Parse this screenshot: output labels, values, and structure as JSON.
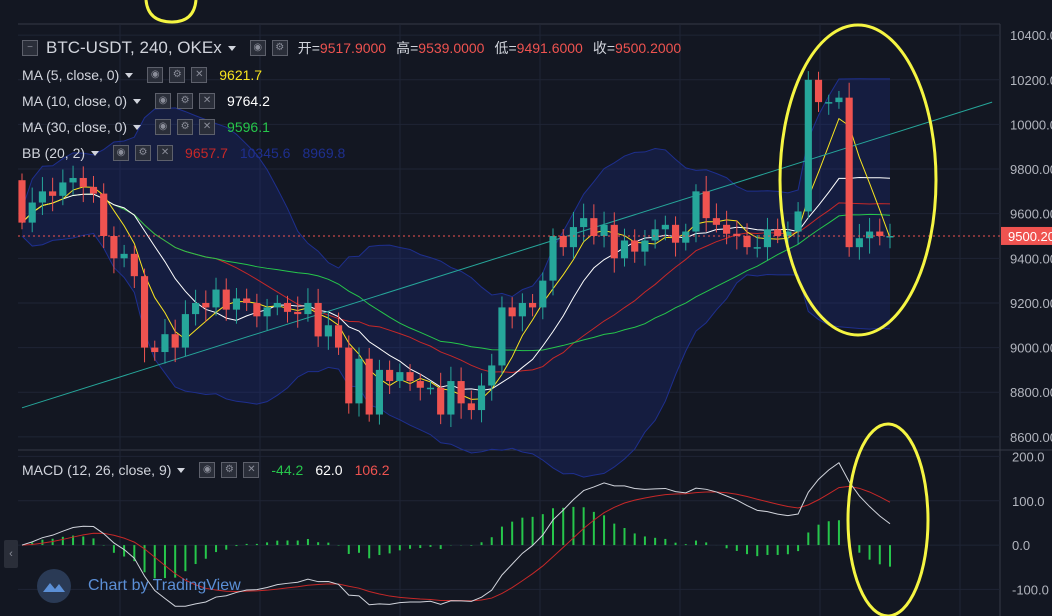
{
  "header": {
    "symbol_title": "BTC-USDT, 240, OKEx",
    "ohlc": [
      {
        "key": "开",
        "value": "9517.9000"
      },
      {
        "key": "高",
        "value": "9539.0000"
      },
      {
        "key": "低",
        "value": "9491.6000"
      },
      {
        "key": "收",
        "value": "9500.2000"
      }
    ]
  },
  "indicators": [
    {
      "label": "MA (5, close, 0)",
      "value": "9621.7",
      "color": "#f7e41f"
    },
    {
      "label": "MA (10, close, 0)",
      "value": "9764.2",
      "color": "#ffffff"
    },
    {
      "label": "MA (30, close, 0)",
      "value": "9596.1",
      "color": "#26c64b"
    },
    {
      "label": "BB (20, 2)",
      "values": [
        {
          "v": "9657.7",
          "color": "#c62828"
        },
        {
          "v": "10345.6",
          "color": "#1e2f8e"
        },
        {
          "v": "8969.8",
          "color": "#1e2f8e"
        }
      ]
    }
  ],
  "macd_legend": {
    "label": "MACD (12, 26, close, 9)",
    "values": [
      {
        "v": "-44.2",
        "color": "#26c64b"
      },
      {
        "v": "62.0",
        "color": "#ffffff"
      },
      {
        "v": "106.2",
        "color": "#ef5350"
      }
    ]
  },
  "price_axis": {
    "ticks": [
      "10400.00",
      "10200.00",
      "10000.00",
      "9800.00",
      "9600.00",
      "9400.00",
      "9200.00",
      "9000.00",
      "8800.00",
      "8600.00"
    ],
    "current_price": "9500.20"
  },
  "macd_axis": {
    "ticks": [
      "200.0",
      "100.0",
      "0.0",
      "-100.0"
    ]
  },
  "branding": {
    "text": "Chart by TradingView"
  },
  "colors": {
    "up": "#26a69a",
    "down": "#ef5350",
    "background": "#131722",
    "annotation": "#f5f542"
  },
  "chart_data": [
    {
      "type": "candlestick",
      "title": "BTC-USDT, 240, OKEx",
      "ylim": [
        8550,
        10450
      ],
      "y_ticks": [
        10400,
        10200,
        10000,
        9800,
        9600,
        9400,
        9200,
        9000,
        8800,
        8600
      ],
      "series": [
        {
          "name": "candles",
          "open": [
            9750,
            9560,
            9650,
            9700,
            9680,
            9740,
            9760,
            9720,
            9690,
            9500,
            9400,
            9420,
            9320,
            9000,
            8980,
            9060,
            9000,
            9150,
            9200,
            9180,
            9260,
            9170,
            9220,
            9200,
            9140,
            9180,
            9200,
            9160,
            9150,
            9200,
            9050,
            9100,
            9000,
            8750,
            8950,
            8700,
            8900,
            8850,
            8890,
            8850,
            8820,
            8820,
            8700,
            8850,
            8750,
            8720,
            8830,
            8920,
            9180,
            9140,
            9200,
            9180,
            9300,
            9500,
            9450,
            9540,
            9580,
            9500,
            9550,
            9400,
            9480,
            9430,
            9480,
            9530,
            9550,
            9470,
            9520,
            9700,
            9580,
            9550,
            9510,
            9500,
            9450,
            9450,
            9530,
            9500,
            9520,
            9610,
            10200,
            10100,
            10100,
            10120,
            9450,
            9490,
            9520,
            9500
          ],
          "close": [
            9560,
            9650,
            9700,
            9680,
            9740,
            9760,
            9720,
            9690,
            9500,
            9400,
            9420,
            9320,
            9000,
            8980,
            9060,
            9000,
            9150,
            9200,
            9180,
            9260,
            9170,
            9220,
            9200,
            9140,
            9180,
            9200,
            9160,
            9150,
            9200,
            9050,
            9100,
            9000,
            8750,
            8950,
            8700,
            8900,
            8850,
            8890,
            8850,
            8820,
            8820,
            8700,
            8850,
            8750,
            8720,
            8830,
            8920,
            9180,
            9140,
            9200,
            9180,
            9300,
            9500,
            9450,
            9540,
            9580,
            9500,
            9550,
            9400,
            9480,
            9430,
            9480,
            9530,
            9550,
            9470,
            9520,
            9700,
            9580,
            9550,
            9510,
            9500,
            9450,
            9450,
            9530,
            9500,
            9520,
            9610,
            10200,
            10100,
            10100,
            10120,
            9450,
            9490,
            9520,
            9500,
            9500
          ]
        }
      ],
      "overlays": [
        {
          "name": "MA (5, close, 0)",
          "color": "#f7e41f"
        },
        {
          "name": "MA (10, close, 0)",
          "color": "#ffffff"
        },
        {
          "name": "MA (30, close, 0)",
          "color": "#26c64b"
        },
        {
          "name": "BB (20, 2)",
          "color": "#c62828"
        }
      ],
      "trendline": {
        "from": [
          0,
          8730
        ],
        "to": [
          95,
          10100
        ],
        "color": "#26a69a"
      }
    },
    {
      "type": "line",
      "title": "MACD (12, 26, close, 9)",
      "ylim": [
        -160,
        210
      ],
      "y_ticks": [
        200,
        100,
        0,
        -100
      ],
      "series": [
        {
          "name": "macd",
          "color": "#d1d4dc"
        },
        {
          "name": "signal",
          "color": "#c62828"
        },
        {
          "name": "histogram",
          "color": "#26c64b"
        }
      ]
    }
  ]
}
